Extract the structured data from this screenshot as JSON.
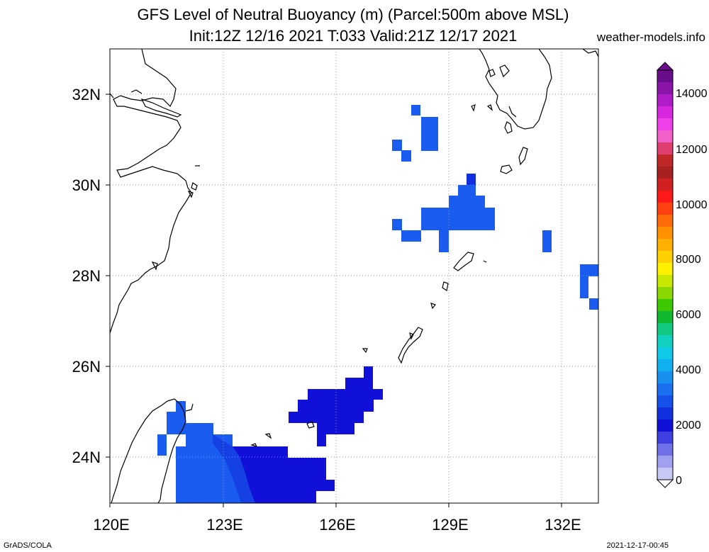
{
  "title_line1": "GFS Level of Neutral Buoyancy (m) (Parcel:500m above MSL)",
  "title_line2": "Init:12Z 12/16 2021 T:033 Valid:21Z 12/17 2021",
  "site": "weather-models.info",
  "footer_left": "GrADS/COLA",
  "footer_right": "2021-12-17-00:45",
  "map": {
    "lon_range": [
      120,
      133
    ],
    "lat_range": [
      23,
      33
    ],
    "lon_ticks": [
      "120E",
      "123E",
      "126E",
      "129E",
      "132E"
    ],
    "lat_ticks": [
      "32N",
      "30N",
      "28N",
      "26N",
      "24N"
    ],
    "grid": "dotted"
  },
  "colorbar": {
    "labels": [
      "14000",
      "12000",
      "10000",
      "8000",
      "6000",
      "4000",
      "2000",
      "0"
    ],
    "colors": [
      "#6a0d8a",
      "#8a13a8",
      "#b01dc8",
      "#d728e0",
      "#ee3fe8",
      "#f060c8",
      "#e04070",
      "#c02828",
      "#a82020",
      "#d02020",
      "#ff1a1a",
      "#ff4010",
      "#ff6a08",
      "#ff9000",
      "#ffb000",
      "#ffd000",
      "#fff000",
      "#c8e800",
      "#8ad800",
      "#3cc800",
      "#10b830",
      "#10c880",
      "#10d0c0",
      "#10c8e8",
      "#10b0f0",
      "#1890f0",
      "#1a70f0",
      "#1550e8",
      "#1030e0",
      "#1010d8",
      "#4040e0",
      "#7070e8",
      "#a0a0f0",
      "#c8c8f6"
    ]
  }
}
